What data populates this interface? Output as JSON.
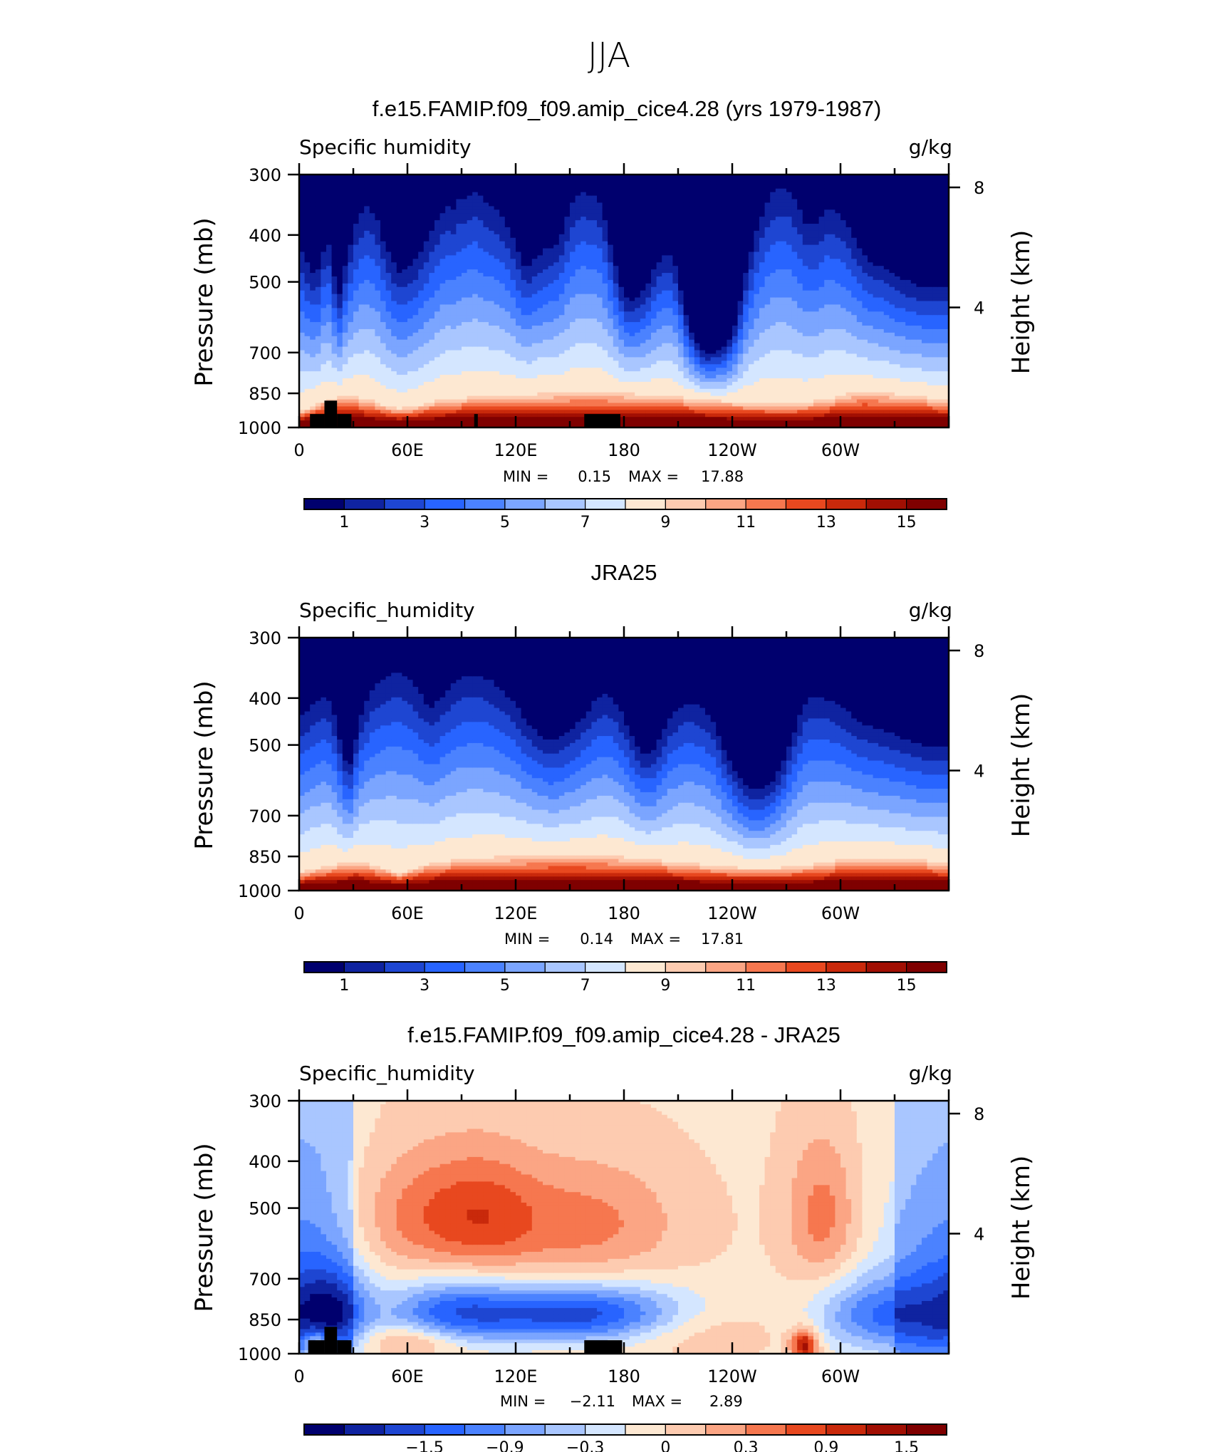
{
  "figure_title": "JJA",
  "colors": {
    "absolute_scale": [
      "#00006e",
      "#0f23a0",
      "#1e46d2",
      "#2864ff",
      "#4b82ff",
      "#7ba5ff",
      "#a9c6ff",
      "#d4e6ff",
      "#fde8d2",
      "#fdcbb0",
      "#fba584",
      "#f6774f",
      "#e8481f",
      "#c9290b",
      "#a10f03",
      "#7f0000"
    ],
    "difference_scale": [
      "#00006e",
      "#0f23a0",
      "#1e46d2",
      "#2864ff",
      "#4b82ff",
      "#7ba5ff",
      "#a9c6ff",
      "#d4e6ff",
      "#fde8d2",
      "#fdcbb0",
      "#fba584",
      "#f6774f",
      "#e8481f",
      "#c9290b",
      "#a10f03",
      "#7f0000"
    ],
    "terrain": "#000000"
  },
  "chart_data": [
    {
      "type": "heatmap",
      "title": "f.e15.FAMIP.f09_f09.amip_cice4.28 (yrs 1979-1987)",
      "subtitle_left": "Specific humidity",
      "subtitle_right": "g/kg",
      "ylabel": "Pressure (mb)",
      "ylabel_right": "Height (km)",
      "x_ticks": [
        "0",
        "60E",
        "120E",
        "180",
        "120W",
        "60W"
      ],
      "y_ticks": [
        "300",
        "400",
        "500",
        "700",
        "850",
        "1000"
      ],
      "y_right_ticks": [
        "8",
        "4"
      ],
      "xlim": [
        0,
        360
      ],
      "ylim": [
        1000,
        300
      ],
      "stats": {
        "min_label": "MIN =",
        "min": "0.15",
        "max_label": "MAX =",
        "max": "17.88"
      },
      "colorbar_labels": [
        "1",
        "3",
        "5",
        "7",
        "9",
        "11",
        "13",
        "15"
      ],
      "levels": [
        1,
        2,
        3,
        4,
        5,
        6,
        7,
        8,
        9,
        10,
        11,
        12,
        13,
        14,
        15
      ],
      "min": 0.15,
      "max": 17.88,
      "upper_boundary_p": [
        420,
        450,
        470,
        490,
        440,
        405,
        480,
        540,
        470,
        420,
        380,
        360,
        350,
        360,
        380,
        420,
        440,
        470,
        480,
        470,
        460,
        440,
        420,
        400,
        380,
        360,
        350,
        355,
        340,
        335,
        330,
        325,
        335,
        345,
        350,
        360,
        375,
        395,
        420,
        455,
        470,
        455,
        440,
        430,
        425,
        420,
        400,
        370,
        345,
        330,
        325,
        330,
        335,
        345,
        385,
        435,
        490,
        530,
        550,
        540,
        530,
        510,
        480,
        455,
        440,
        440,
        465,
        520,
        590,
        640,
        680,
        700,
        705,
        700,
        690,
        670,
        640,
        590,
        500,
        450,
        400,
        370,
        345,
        330,
        320,
        320,
        325,
        340,
        360,
        380,
        380,
        380,
        360,
        350,
        360,
        365,
        380,
        400,
        420,
        440,
        450,
        460,
        460,
        470,
        480,
        490,
        495,
        500,
        505,
        510,
        510,
        510,
        510,
        515,
        515
      ],
      "scale_height_km": 7.0,
      "moist_boundary_p": [
        930,
        900,
        875,
        860,
        865,
        880,
        905,
        915,
        905,
        890,
        875,
        870,
        865,
        862,
        860,
        858,
        855,
        852,
        850,
        848,
        848,
        848,
        850,
        852,
        855,
        860,
        865,
        870,
        875,
        880,
        885,
        890,
        892,
        895,
        895,
        890,
        880,
        868,
        852,
        845,
        848,
        852,
        860,
        865,
        870,
        875
      ],
      "terrain_columns": [
        [
          6,
          14,
          938
        ],
        [
          14,
          21,
          880
        ],
        [
          21,
          29,
          938
        ],
        [
          97,
          99,
          938
        ],
        [
          158,
          178,
          938
        ]
      ]
    },
    {
      "type": "heatmap",
      "title": "JRA25",
      "subtitle_left": "Specific_humidity",
      "subtitle_right": "g/kg",
      "ylabel": "Pressure (mb)",
      "ylabel_right": "Height (km)",
      "x_ticks": [
        "0",
        "60E",
        "120E",
        "180",
        "120W",
        "60W"
      ],
      "y_ticks": [
        "300",
        "400",
        "500",
        "700",
        "850",
        "1000"
      ],
      "y_right_ticks": [
        "8",
        "4"
      ],
      "xlim": [
        0,
        360
      ],
      "ylim": [
        1000,
        300
      ],
      "stats": {
        "min_label": "MIN =",
        "min": "0.14",
        "max_label": "MAX =",
        "max": "17.81"
      },
      "colorbar_labels": [
        "1",
        "3",
        "5",
        "7",
        "9",
        "11",
        "13",
        "15"
      ],
      "levels": [
        1,
        2,
        3,
        4,
        5,
        6,
        7,
        8,
        9,
        10,
        11,
        12,
        13,
        14,
        15
      ],
      "min": 0.14,
      "max": 17.81,
      "upper_boundary_p": [
        440,
        430,
        415,
        405,
        400,
        410,
        450,
        520,
        560,
        490,
        430,
        400,
        380,
        370,
        360,
        355,
        355,
        360,
        370,
        385,
        405,
        420,
        410,
        395,
        380,
        370,
        360,
        360,
        360,
        360,
        365,
        370,
        380,
        390,
        405,
        420,
        440,
        455,
        470,
        480,
        490,
        490,
        480,
        470,
        460,
        445,
        430,
        410,
        400,
        395,
        400,
        415,
        440,
        470,
        500,
        520,
        520,
        510,
        480,
        450,
        430,
        420,
        410,
        410,
        415,
        425,
        440,
        470,
        510,
        540,
        570,
        600,
        620,
        620,
        620,
        610,
        590,
        560,
        520,
        480,
        440,
        410,
        400,
        400,
        400,
        405,
        410,
        420,
        430,
        440,
        450,
        455,
        460,
        465,
        470,
        475,
        480,
        485,
        490,
        495,
        500,
        500,
        500,
        500,
        500
      ],
      "scale_height_km": 7.0,
      "moist_boundary_p": [
        920,
        905,
        890,
        880,
        870,
        885,
        905,
        920,
        900,
        880,
        870,
        865,
        860,
        855,
        852,
        850,
        848,
        846,
        845,
        845,
        846,
        848,
        850,
        855,
        860,
        866,
        872,
        878,
        885,
        890,
        895,
        900,
        900,
        898,
        895,
        888,
        880,
        870,
        860,
        855,
        855,
        858,
        862,
        866,
        870,
        875
      ],
      "terrain_columns": []
    },
    {
      "type": "heatmap",
      "title": "f.e15.FAMIP.f09_f09.amip_cice4.28 - JRA25",
      "subtitle_left": "Specific_humidity",
      "subtitle_right": "g/kg",
      "ylabel": "Pressure (mb)",
      "ylabel_right": "Height (km)",
      "x_ticks": [
        "0",
        "60E",
        "120E",
        "180",
        "120W",
        "60W"
      ],
      "y_ticks": [
        "300",
        "400",
        "500",
        "700",
        "850",
        "1000"
      ],
      "y_right_ticks": [
        "8",
        "4"
      ],
      "xlim": [
        0,
        360
      ],
      "ylim": [
        1000,
        300
      ],
      "stats": {
        "min_label": "MIN =",
        "min": "−2.11",
        "max_label": "MAX =",
        "max": "2.89"
      },
      "colorbar_labels": [
        "−1.5",
        "−0.9",
        "−0.3",
        "0",
        "0.3",
        "0.9",
        "1.5"
      ],
      "levels": [
        -2.1,
        -1.8,
        -1.5,
        -1.2,
        -0.9,
        -0.6,
        -0.3,
        0,
        0.3,
        0.6,
        0.9,
        1.2,
        1.5,
        1.8,
        2.1
      ],
      "min": -2.11,
      "max": 2.89,
      "anomalies": [
        {
          "lon": 70,
          "p": 520,
          "amp": 0.75,
          "wlon": 28,
          "wp": 110
        },
        {
          "lon": 105,
          "p": 520,
          "amp": 0.7,
          "wlon": 22,
          "wp": 110
        },
        {
          "lon": 160,
          "p": 540,
          "amp": 0.75,
          "wlon": 35,
          "wp": 110
        },
        {
          "lon": 290,
          "p": 520,
          "amp": 0.8,
          "wlon": 14,
          "wp": 130
        },
        {
          "lon": 85,
          "p": 820,
          "amp": -1.4,
          "wlon": 28,
          "wp": 90
        },
        {
          "lon": 160,
          "p": 830,
          "amp": -1.9,
          "wlon": 42,
          "wp": 80
        },
        {
          "lon": 20,
          "p": 830,
          "amp": -1.2,
          "wlon": 14,
          "wp": 120
        },
        {
          "lon": 315,
          "p": 830,
          "amp": -1.1,
          "wlon": 22,
          "wp": 100
        },
        {
          "lon": 350,
          "p": 850,
          "amp": -0.9,
          "wlon": 22,
          "wp": 140
        },
        {
          "lon": 10,
          "p": 700,
          "amp": -0.5,
          "wlon": 18,
          "wp": 300
        },
        {
          "lon": 345,
          "p": 560,
          "amp": -0.35,
          "wlon": 25,
          "wp": 200
        },
        {
          "lon": 60,
          "p": 940,
          "amp": 0.7,
          "wlon": 20,
          "wp": 50
        },
        {
          "lon": 215,
          "p": 880,
          "amp": 0.5,
          "wlon": 30,
          "wp": 80
        },
        {
          "lon": 280,
          "p": 960,
          "amp": 1.8,
          "wlon": 5,
          "wp": 50
        },
        {
          "lon": 10,
          "p": 960,
          "amp": 1.2,
          "wlon": 6,
          "wp": 50
        }
      ],
      "terrain_columns": [
        [
          5,
          14,
          938
        ],
        [
          14,
          21,
          880
        ],
        [
          21,
          29,
          938
        ],
        [
          158,
          179,
          938
        ]
      ]
    }
  ]
}
